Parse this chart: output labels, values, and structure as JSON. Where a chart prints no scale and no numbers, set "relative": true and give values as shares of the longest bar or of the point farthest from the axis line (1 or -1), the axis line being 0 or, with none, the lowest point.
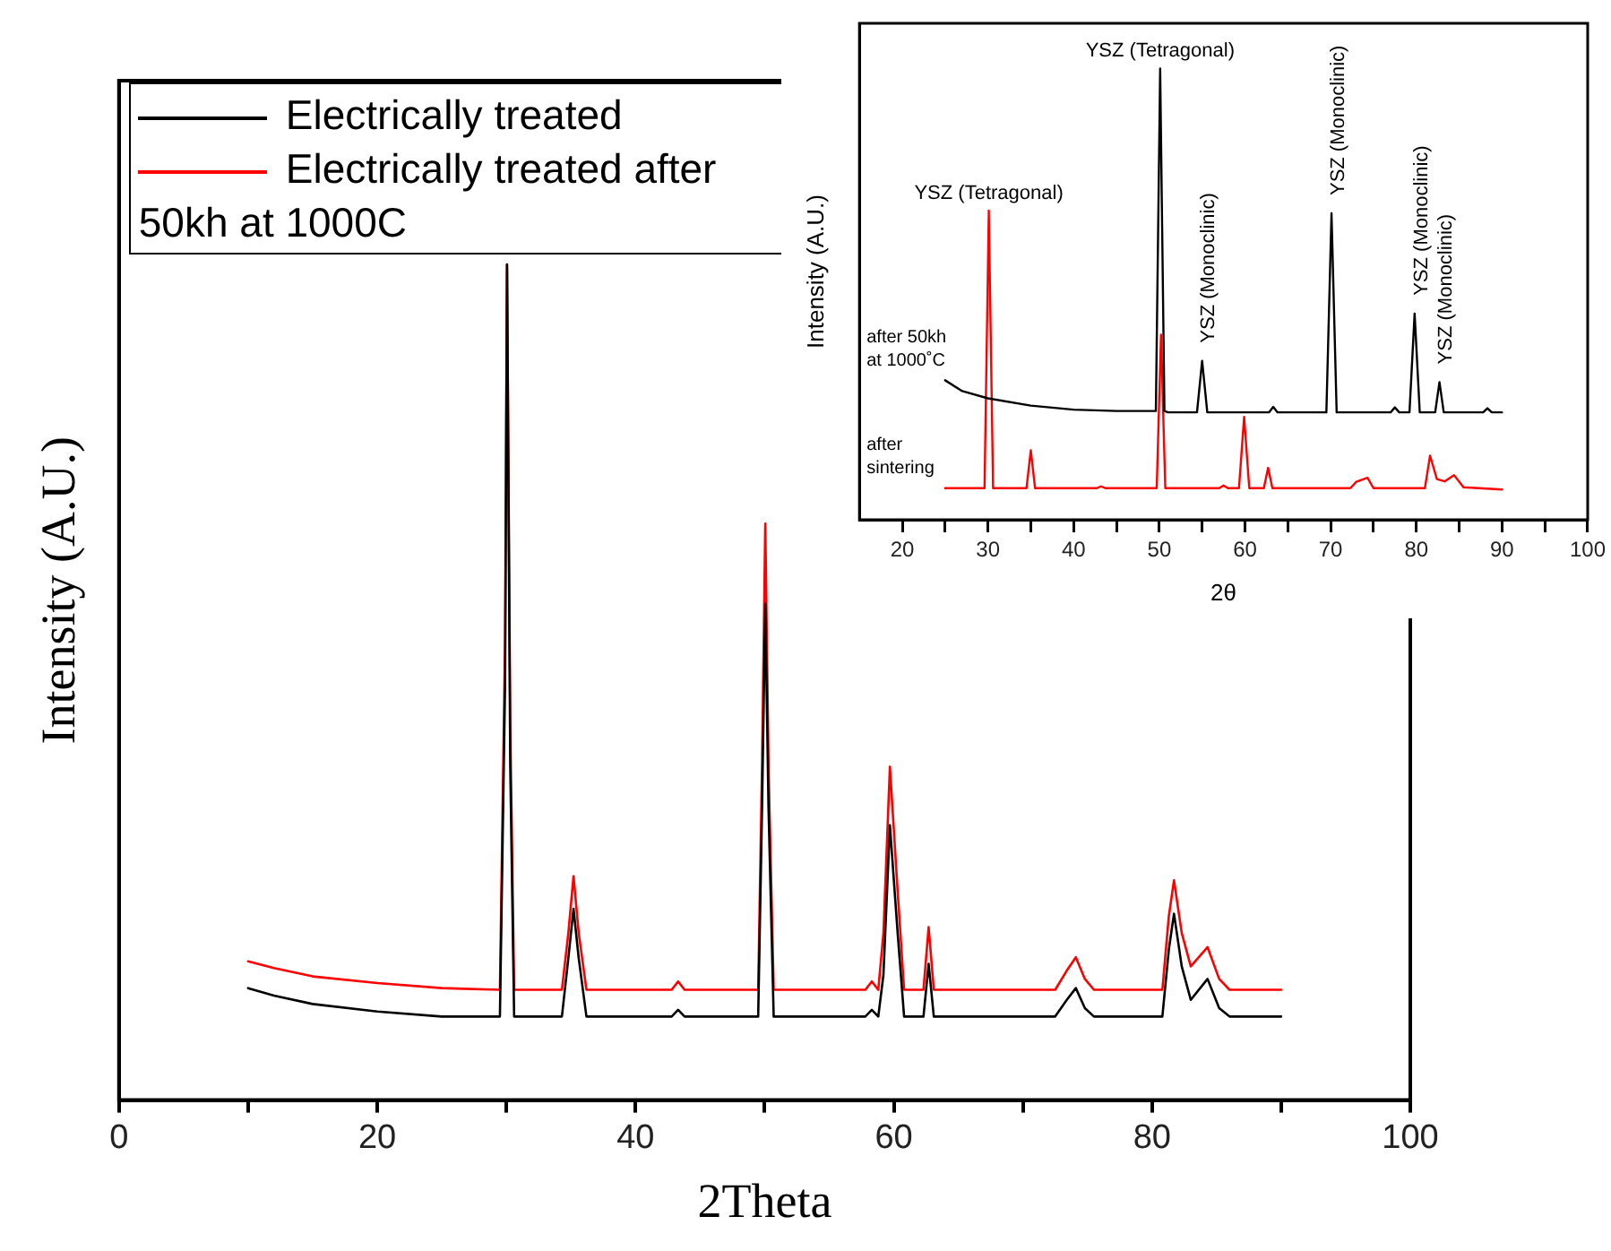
{
  "chart_data": [
    {
      "type": "line",
      "xlabel": "2Theta",
      "ylabel": "Intensity (A.U.)",
      "relative": true,
      "xlim": [
        0,
        100
      ],
      "xticks": [
        0,
        {
          "value": 10,
          "label": null
        },
        20,
        {
          "value": 30,
          "label": null
        },
        40,
        {
          "value": 50,
          "label": null
        },
        60,
        {
          "value": 70,
          "label": null
        },
        80,
        {
          "value": 90,
          "label": null
        },
        100
      ],
      "legend": "top left",
      "marker": "none",
      "series": [
        {
          "name": "Electrically treated",
          "color": "#000000",
          "x": [
            10,
            12,
            15,
            20,
            25,
            29.5,
            29.9,
            30.05,
            30.3,
            30.6,
            34.3,
            34.8,
            35.2,
            35.6,
            36.2,
            42.8,
            43.3,
            43.8,
            49.5,
            49.8,
            50.05,
            50.3,
            50.7,
            57.8,
            58.3,
            58.8,
            59.2,
            59.7,
            60.3,
            60.8,
            62.3,
            62.7,
            63.1,
            72.5,
            73.4,
            74.1,
            74.8,
            75.5,
            80.8,
            81.3,
            81.7,
            82.3,
            83,
            84.3,
            85.2,
            86,
            90
          ],
          "values": [
            0.134,
            0.125,
            0.115,
            0.106,
            0.1,
            0.1,
            0.5,
            1,
            0.4,
            0.1,
            0.1,
            0.17,
            0.229,
            0.17,
            0.1,
            0.1,
            0.108,
            0.1,
            0.1,
            0.35,
            0.594,
            0.35,
            0.1,
            0.1,
            0.108,
            0.1,
            0.15,
            0.329,
            0.2,
            0.1,
            0.1,
            0.163,
            0.1,
            0.1,
            0.12,
            0.134,
            0.11,
            0.1,
            0.1,
            0.18,
            0.223,
            0.16,
            0.12,
            0.145,
            0.11,
            0.1,
            0.1
          ]
        },
        {
          "name": "Electrically treated after 50kh at 1000C",
          "color": "#ff0000",
          "x": [
            10,
            12,
            15,
            20,
            25,
            29.5,
            29.9,
            30.05,
            30.3,
            30.6,
            34.3,
            34.8,
            35.2,
            35.6,
            36.2,
            42.8,
            43.3,
            43.8,
            49.5,
            49.8,
            50.05,
            50.3,
            50.7,
            57.8,
            58.3,
            58.8,
            59.2,
            59.7,
            60.3,
            60.8,
            62.3,
            62.7,
            63.1,
            72.5,
            73.4,
            74.1,
            74.8,
            75.5,
            80.8,
            81.3,
            81.7,
            82.3,
            83,
            84.3,
            85.2,
            86,
            90
          ],
          "values": [
            0.166,
            0.158,
            0.148,
            0.14,
            0.134,
            0.132,
            0.55,
            1,
            0.45,
            0.132,
            0.132,
            0.2,
            0.268,
            0.2,
            0.132,
            0.132,
            0.142,
            0.132,
            0.132,
            0.4,
            0.69,
            0.4,
            0.132,
            0.132,
            0.142,
            0.132,
            0.2,
            0.399,
            0.25,
            0.132,
            0.132,
            0.207,
            0.132,
            0.132,
            0.155,
            0.171,
            0.145,
            0.132,
            0.132,
            0.22,
            0.263,
            0.2,
            0.16,
            0.183,
            0.145,
            0.132,
            0.132
          ]
        }
      ]
    },
    {
      "type": "line",
      "xlabel": "2θ",
      "ylabel": "Intensity (A.U.)",
      "relative": true,
      "xlim": [
        15,
        100
      ],
      "xticks": [
        20,
        {
          "value": 25,
          "label": null
        },
        30,
        {
          "value": 35,
          "label": null
        },
        40,
        {
          "value": 45,
          "label": null
        },
        50,
        {
          "value": 55,
          "label": null
        },
        60,
        {
          "value": 65,
          "label": null
        },
        70,
        {
          "value": 75,
          "label": null
        },
        80,
        {
          "value": 85,
          "label": null
        },
        90,
        {
          "value": 95,
          "label": null
        },
        100
      ],
      "marker": "none",
      "series": [
        {
          "name": "after 50kh at 1000˚C",
          "color": "#000000",
          "x": [
            25,
            27,
            30,
            35,
            40,
            45,
            49.6,
            50.1,
            50.6,
            51,
            54.4,
            55,
            55.6,
            62.8,
            63.3,
            63.8,
            69.5,
            70.1,
            70.7,
            77,
            77.5,
            78,
            79.2,
            79.8,
            80.4,
            82.2,
            82.7,
            83.2,
            87.8,
            88.3,
            88.8,
            90
          ],
          "values": [
            0.309,
            0.285,
            0.269,
            0.253,
            0.244,
            0.241,
            0.241,
            1,
            0.241,
            0.238,
            0.238,
            0.352,
            0.238,
            0.238,
            0.25,
            0.238,
            0.238,
            0.679,
            0.238,
            0.238,
            0.249,
            0.238,
            0.238,
            0.457,
            0.238,
            0.238,
            0.305,
            0.238,
            0.238,
            0.247,
            0.238,
            0.238
          ]
        },
        {
          "name": "after sintering",
          "color": "#ff0000",
          "x": [
            25,
            29.6,
            30.1,
            30.6,
            34.5,
            35,
            35.5,
            42.7,
            43.2,
            43.7,
            49.7,
            50.2,
            50.7,
            57,
            57.5,
            58,
            59.3,
            59.9,
            60.5,
            62.2,
            62.7,
            63.2,
            72.3,
            73,
            74.3,
            75,
            81,
            81.6,
            82.4,
            83.3,
            84.4,
            85.5,
            90
          ],
          "values": [
            0.07,
            0.07,
            0.685,
            0.07,
            0.07,
            0.154,
            0.07,
            0.07,
            0.074,
            0.07,
            0.07,
            0.41,
            0.07,
            0.07,
            0.076,
            0.07,
            0.07,
            0.228,
            0.07,
            0.07,
            0.115,
            0.07,
            0.07,
            0.084,
            0.093,
            0.07,
            0.07,
            0.142,
            0.09,
            0.085,
            0.099,
            0.072,
            0.067
          ]
        }
      ],
      "annotations": [
        {
          "text": "YSZ (Tetragonal)",
          "x": 30.1,
          "y": 0.685
        },
        {
          "text": "YSZ (Tetragonal)",
          "x": 50.1,
          "y": 1
        },
        {
          "text": "YSZ (Monoclinic)",
          "x": 55,
          "y": 0.352
        },
        {
          "text": "YSZ (Monoclinic)",
          "x": 70.1,
          "y": 0.679
        },
        {
          "text": "YSZ (Monoclinic)",
          "x": 79.8,
          "y": 0.457
        },
        {
          "text": "YSZ (Monoclinic)",
          "x": 82.7,
          "y": 0.305
        }
      ]
    }
  ]
}
